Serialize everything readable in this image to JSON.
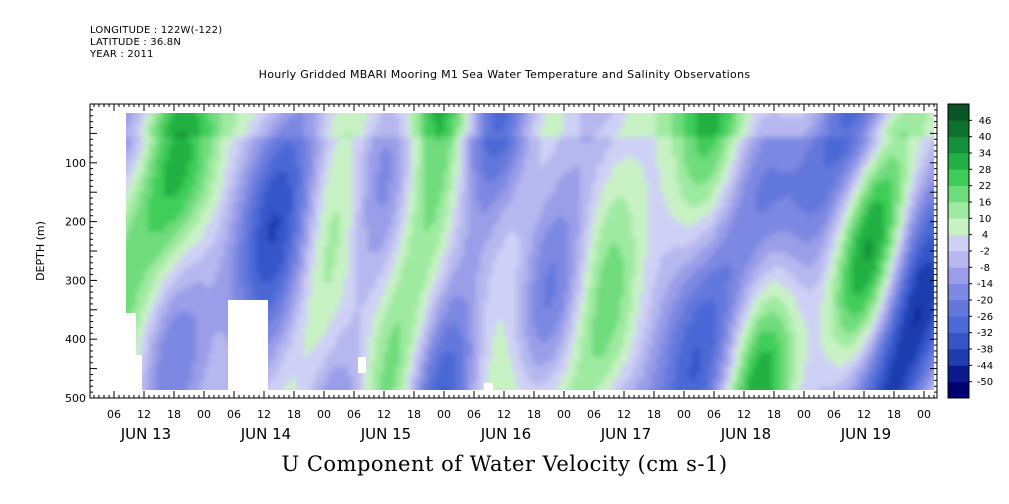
{
  "header": {
    "longitude": "LONGITUDE : 122W(-122)",
    "latitude": "LATITUDE : 36.8N",
    "year": "YEAR : 2011",
    "title": "Hourly Gridded MBARI Mooring M1 Sea Water Temperature and Salinity Observations"
  },
  "chart_data": {
    "type": "heatmap",
    "title": "Hourly Gridded MBARI Mooring M1 Sea Water Temperature and Salinity Observations",
    "xlabel": "U Component of Water Velocity (cm s-1)",
    "ylabel": "DEPTH (m)",
    "ylim": [
      500,
      0
    ],
    "y_inverted": true,
    "yticks": [
      100,
      200,
      300,
      400,
      500
    ],
    "xlim": [
      "2011-06-12T00:00",
      "2011-06-19T12:00"
    ],
    "hour_ticks": [
      "06",
      "12",
      "18",
      "00",
      "06",
      "12",
      "18",
      "00",
      "06",
      "12",
      "18",
      "00",
      "06",
      "12",
      "18",
      "00",
      "06",
      "12",
      "18",
      "00",
      "06",
      "12",
      "18",
      "00",
      "06",
      "12",
      "18",
      "00"
    ],
    "day_labels": [
      "JUN 13",
      "JUN 14",
      "JUN 15",
      "JUN 16",
      "JUN 17",
      "JUN 18",
      "JUN 19"
    ],
    "colorbar": {
      "levels": [
        -50,
        -44,
        -38,
        -32,
        -26,
        -20,
        -14,
        -8,
        -2,
        4,
        10,
        16,
        22,
        28,
        34,
        40,
        46
      ],
      "colors": [
        "#000070",
        "#0b1a8f",
        "#1f3cb0",
        "#3654c8",
        "#4c69d6",
        "#6478dc",
        "#7d88e2",
        "#9a9ee8",
        "#b6b7ee",
        "#cfd0f5",
        "#c8f2c4",
        "#9eeaa0",
        "#6fdc7c",
        "#3fcd5a",
        "#21b043",
        "#14913a",
        "#0d722e",
        "#0a5525"
      ]
    },
    "regions": [
      {
        "day": "JUN 13",
        "dominant": "negative",
        "u_range": [
          -26,
          10
        ]
      },
      {
        "day": "JUN 14",
        "dominant": "positive",
        "u_range": [
          -14,
          16
        ]
      },
      {
        "day": "JUN 15",
        "dominant": "mixed",
        "u_range": [
          -20,
          22
        ]
      },
      {
        "day": "JUN 16",
        "dominant": "positive",
        "u_range": [
          -14,
          22
        ]
      },
      {
        "day": "JUN 17",
        "dominant": "negative",
        "u_range": [
          -20,
          16
        ]
      },
      {
        "day": "JUN 18",
        "dominant": "negative",
        "u_range": [
          -26,
          16
        ]
      },
      {
        "day": "JUN 19",
        "dominant": "mixed",
        "u_range": [
          -20,
          16
        ]
      }
    ],
    "grid": false
  }
}
